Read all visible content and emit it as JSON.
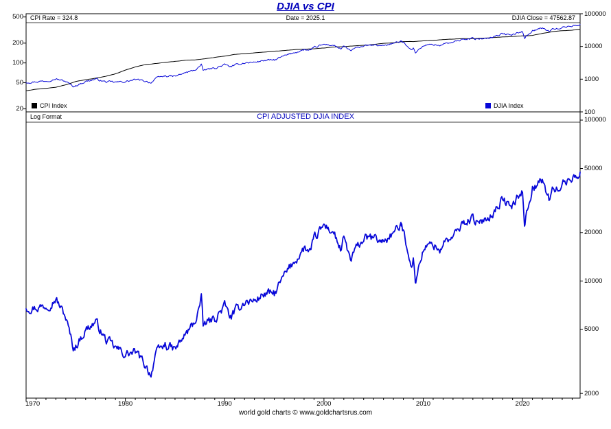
{
  "title": "DJIA vs CPI",
  "footer": "world gold charts © www.goldchartsrus.com",
  "colors": {
    "line_blue": "#0707d8",
    "line_black": "#000000",
    "title_blue": "#0000bb"
  },
  "top_panel": {
    "annotations": {
      "cpi_rate": "CPI Rate = 324.8",
      "date": "Date = 2025.1",
      "djia_close": "DJIA Close = 47562.87"
    },
    "legend": [
      {
        "label": "CPI Index",
        "color": "#000000"
      },
      {
        "label": "DJIA Index",
        "color": "#0707d8"
      }
    ]
  },
  "bottom_panel": {
    "log_format_label": "Log Format",
    "title": "CPI ADJUSTED DJIA INDEX"
  },
  "chart_data": [
    {
      "id": "djia_vs_cpi",
      "type": "line",
      "title": "DJIA vs CPI",
      "legend_position": "bottom",
      "grid": false,
      "x_range": [
        1970,
        2025.8
      ],
      "x_ticks": [
        1970,
        1980,
        1990,
        2000,
        2010,
        2020
      ],
      "axes": {
        "left": {
          "scale": "log",
          "range": [
            18,
            560
          ],
          "ticks": [
            500,
            200,
            100,
            50,
            20
          ]
        },
        "right": {
          "scale": "log",
          "range": [
            100,
            100000
          ],
          "ticks": [
            100000,
            10000,
            1000,
            100
          ]
        }
      },
      "annotations": [
        "CPI Rate = 324.8",
        "Date = 2025.1",
        "DJIA Close = 47562.87"
      ],
      "series": [
        {
          "name": "CPI Index",
          "axis": "left",
          "color": "#000000",
          "x": [
            1970,
            1971,
            1972,
            1973,
            1974,
            1975,
            1976,
            1977,
            1978,
            1979,
            1980,
            1981,
            1982,
            1983,
            1984,
            1985,
            1986,
            1987,
            1988,
            1989,
            1990,
            1991,
            1992,
            1993,
            1994,
            1995,
            1996,
            1997,
            1998,
            1999,
            2000,
            2001,
            2002,
            2003,
            2004,
            2005,
            2006,
            2007,
            2008,
            2009,
            2010,
            2011,
            2012,
            2013,
            2014,
            2015,
            2016,
            2017,
            2018,
            2019,
            2020,
            2021,
            2022,
            2023,
            2024,
            2025,
            2025.8
          ],
          "values": [
            37.8,
            39.8,
            41.1,
            42.6,
            46.6,
            52.1,
            55.6,
            58.5,
            62.5,
            68.3,
            77.8,
            87.0,
            94.3,
            97.8,
            101.9,
            105.5,
            109.6,
            111.2,
            115.7,
            121.1,
            127.4,
            134.6,
            138.1,
            142.6,
            146.2,
            150.3,
            154.4,
            159.1,
            161.6,
            164.3,
            168.8,
            175.1,
            177.1,
            181.7,
            185.2,
            190.7,
            198.3,
            202.4,
            211.1,
            211.1,
            216.7,
            220.2,
            226.7,
            230.3,
            233.9,
            233.7,
            236.9,
            242.8,
            247.9,
            251.7,
            257.9,
            261.6,
            281.1,
            299.2,
            308.4,
            315.6,
            324.8
          ]
        },
        {
          "name": "DJIA Index",
          "axis": "right",
          "color": "#0707d8",
          "x": [
            1970,
            1971,
            1972,
            1973,
            1974,
            1974.75,
            1975,
            1976,
            1977,
            1978,
            1979,
            1980,
            1981,
            1982,
            1982.6,
            1983,
            1984,
            1985,
            1986,
            1987,
            1987.65,
            1987.85,
            1988,
            1989,
            1990,
            1990.6,
            1991,
            1992,
            1993,
            1994,
            1995,
            1996,
            1997,
            1998,
            1998.7,
            1999,
            2000,
            2001,
            2001.75,
            2002,
            2002.75,
            2003,
            2004,
            2005,
            2006,
            2007,
            2007.8,
            2008,
            2008.9,
            2009,
            2009.2,
            2010,
            2011,
            2011.75,
            2012,
            2013,
            2014,
            2015,
            2015.7,
            2016,
            2017,
            2018,
            2018.95,
            2019,
            2020,
            2020.2,
            2021,
            2022,
            2022.75,
            2023,
            2024,
            2025,
            2025.8
          ],
          "values": [
            800,
            839,
            890,
            1020,
            851,
            600,
            632,
            852,
            1005,
            831,
            805,
            839,
            964,
            875,
            777,
            1047,
            1259,
            1212,
            1547,
            1896,
            2722,
            1739,
            1939,
            2169,
            2753,
            2400,
            2634,
            3169,
            3301,
            3754,
            3834,
            5117,
            6448,
            7908,
            7539,
            9181,
            11497,
            10787,
            8236,
            10021,
            7286,
            8342,
            10454,
            10783,
            10718,
            12463,
            14164,
            13265,
            7900,
            8776,
            6547,
            10428,
            11578,
            10655,
            12218,
            13104,
            16577,
            17823,
            16000,
            17425,
            19763,
            24719,
            21792,
            23327,
            28538,
            18592,
            30606,
            36338,
            28726,
            33147,
            37690,
            42544,
            47562.87
          ]
        }
      ]
    },
    {
      "id": "cpi_adjusted_djia",
      "type": "line",
      "title": "CPI ADJUSTED DJIA INDEX",
      "scale_note": "Log Format",
      "grid": false,
      "x_range": [
        1970,
        2025.8
      ],
      "x_ticks": [
        1970,
        1980,
        1990,
        2000,
        2010,
        2020
      ],
      "axes": {
        "right": {
          "scale": "log",
          "range": [
            1870,
            112500
          ],
          "ticks": [
            100000,
            50000,
            20000,
            10000,
            5000,
            2000
          ]
        }
      },
      "series": [
        {
          "name": "CPI Adjusted DJIA",
          "axis": "right",
          "color": "#0707d8",
          "derived_from": "DJIA Index * latest CPI / CPI Index",
          "sample_points": {
            "x": [
              1970,
              1975,
              1982.6,
              1987.65,
              1990,
              2000,
              2009.2,
              2020.2,
              2025.8
            ],
            "values": [
              6870,
              3940,
              2620,
              7750,
              7020,
              22120,
              10020,
              23350,
              47562.87
            ]
          }
        }
      ]
    }
  ]
}
